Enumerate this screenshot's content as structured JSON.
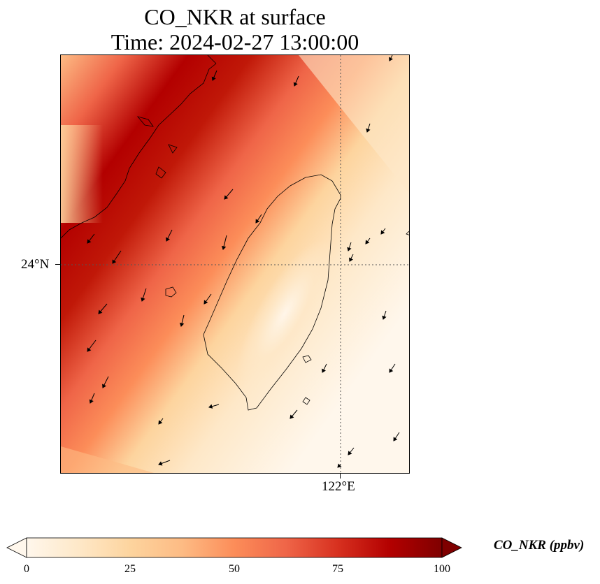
{
  "title": {
    "line1": "CO_NKR at surface",
    "line2": "Time: 2024-02-27 13:00:00"
  },
  "map": {
    "lat_label": "24°N",
    "lon_label": "122°E",
    "field_variable": "CO_NKR",
    "wind_direction": "north-northeasterly (arrows pointing south-southwest)",
    "features": [
      "coastline-taiwan",
      "coastline-mainland-china",
      "gridline-lat-24N",
      "gridline-lon-122E",
      "wind-vectors"
    ]
  },
  "colorbar": {
    "title": "CO_NKR (ppbv)",
    "ticks": [
      "0",
      "25",
      "50",
      "75",
      "100"
    ],
    "colormap": "OrRd",
    "colors": [
      "#fff7ec",
      "#fee8c8",
      "#fdd49e",
      "#fdbb84",
      "#fc8d59",
      "#ef6548",
      "#d7301f",
      "#b30000",
      "#7f0000"
    ],
    "extend": "both"
  }
}
